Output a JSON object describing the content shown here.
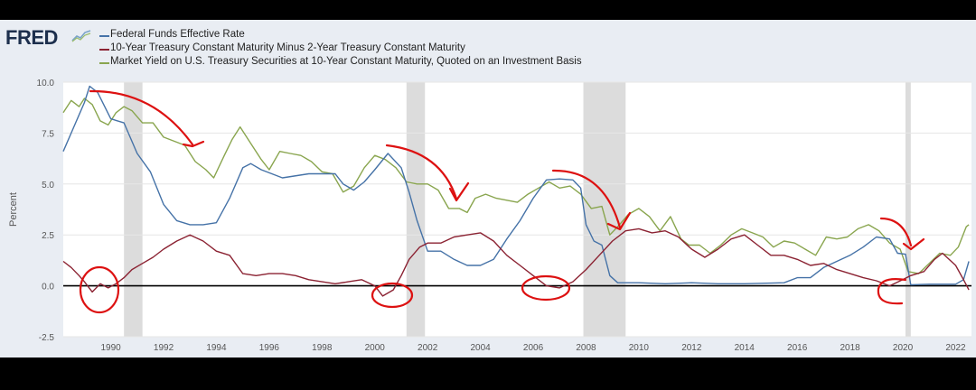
{
  "logo": {
    "text": "FRED"
  },
  "colors": {
    "fedfunds": "#4572a7",
    "spread": "#8b2232",
    "yield10": "#89a54e",
    "recession": "#dcdcdc",
    "annotation": "#dd1111"
  },
  "chart_data": {
    "type": "line",
    "ylabel": "Percent",
    "xlim": [
      1988.2,
      2022.6
    ],
    "ylim": [
      -2.5,
      10
    ],
    "yticks": [
      -2.5,
      0.0,
      2.5,
      5.0,
      7.5,
      10.0
    ],
    "ytick_labels": [
      "-2.5",
      "0.0",
      "2.5",
      "5.0",
      "7.5",
      "10.0"
    ],
    "xticks": [
      1990,
      1992,
      1994,
      1996,
      1998,
      2000,
      2002,
      2004,
      2006,
      2008,
      2010,
      2012,
      2014,
      2016,
      2018,
      2020,
      2022
    ],
    "xtick_labels": [
      "1990",
      "1992",
      "1994",
      "1996",
      "1998",
      "2000",
      "2002",
      "2004",
      "2006",
      "2008",
      "2010",
      "2012",
      "2014",
      "2016",
      "2018",
      "2020",
      "2022"
    ],
    "recessions": [
      [
        1990.5,
        1991.2
      ],
      [
        2001.2,
        2001.9
      ],
      [
        2007.9,
        2009.5
      ],
      [
        2020.1,
        2020.3
      ]
    ],
    "series": [
      {
        "name": "Federal Funds Effective Rate",
        "color_key": "fedfunds",
        "x": [
          1988.2,
          1988.6,
          1989.0,
          1989.2,
          1989.5,
          1990.0,
          1990.5,
          1991.0,
          1991.5,
          1992.0,
          1992.5,
          1993.0,
          1993.5,
          1994.0,
          1994.5,
          1995.0,
          1995.3,
          1995.7,
          1996.5,
          1997.5,
          1998.5,
          1998.8,
          1999.2,
          1999.6,
          2000.0,
          2000.5,
          2001.0,
          2001.3,
          2001.6,
          2002.0,
          2002.5,
          2003.0,
          2003.5,
          2004.0,
          2004.5,
          2005.0,
          2005.5,
          2006.0,
          2006.5,
          2007.0,
          2007.5,
          2007.8,
          2008.0,
          2008.3,
          2008.6,
          2008.9,
          2009.2,
          2010.0,
          2011.0,
          2012.0,
          2013.0,
          2014.0,
          2015.5,
          2016.0,
          2016.5,
          2017.0,
          2017.5,
          2018.0,
          2018.5,
          2019.0,
          2019.5,
          2019.8,
          2020.1,
          2020.3,
          2021.0,
          2022.0,
          2022.3,
          2022.5
        ],
        "y": [
          6.6,
          7.8,
          9.0,
          9.8,
          9.5,
          8.2,
          8.0,
          6.5,
          5.6,
          4.0,
          3.2,
          3.0,
          3.0,
          3.1,
          4.3,
          5.8,
          6.0,
          5.7,
          5.3,
          5.5,
          5.5,
          5.0,
          4.7,
          5.1,
          5.7,
          6.5,
          5.8,
          4.6,
          3.2,
          1.7,
          1.7,
          1.3,
          1.0,
          1.0,
          1.3,
          2.3,
          3.2,
          4.3,
          5.2,
          5.25,
          5.2,
          4.8,
          3.0,
          2.2,
          2.0,
          0.5,
          0.15,
          0.15,
          0.1,
          0.15,
          0.1,
          0.1,
          0.15,
          0.4,
          0.4,
          0.9,
          1.2,
          1.5,
          1.9,
          2.4,
          2.3,
          1.6,
          1.55,
          0.05,
          0.08,
          0.08,
          0.3,
          1.2
        ]
      },
      {
        "name": "10-Year Treasury Constant Maturity Minus 2-Year Treasury Constant Maturity",
        "color_key": "spread",
        "x": [
          1988.2,
          1988.5,
          1988.8,
          1989.0,
          1989.3,
          1989.6,
          1989.9,
          1990.2,
          1990.5,
          1990.8,
          1991.2,
          1991.6,
          1992.0,
          1992.5,
          1993.0,
          1993.5,
          1994.0,
          1994.5,
          1995.0,
          1995.5,
          1996.0,
          1996.5,
          1997.0,
          1997.5,
          1998.0,
          1998.5,
          1999.0,
          1999.5,
          2000.0,
          2000.3,
          2000.7,
          2001.0,
          2001.3,
          2001.7,
          2002.0,
          2002.5,
          2003.0,
          2003.5,
          2004.0,
          2004.5,
          2005.0,
          2005.5,
          2006.0,
          2006.5,
          2007.0,
          2007.5,
          2008.0,
          2008.5,
          2009.0,
          2009.5,
          2010.0,
          2010.5,
          2011.0,
          2011.5,
          2012.0,
          2012.5,
          2013.0,
          2013.5,
          2014.0,
          2014.5,
          2015.0,
          2015.5,
          2016.0,
          2016.5,
          2017.0,
          2017.5,
          2018.0,
          2018.5,
          2019.0,
          2019.5,
          2020.0,
          2020.3,
          2020.8,
          2021.2,
          2021.5,
          2022.0,
          2022.3,
          2022.5
        ],
        "y": [
          1.2,
          0.9,
          0.5,
          0.2,
          -0.3,
          0.1,
          -0.1,
          0.1,
          0.4,
          0.8,
          1.1,
          1.4,
          1.8,
          2.2,
          2.5,
          2.2,
          1.7,
          1.5,
          0.6,
          0.5,
          0.6,
          0.6,
          0.5,
          0.3,
          0.2,
          0.1,
          0.2,
          0.3,
          0.0,
          -0.5,
          -0.2,
          0.5,
          1.3,
          1.9,
          2.1,
          2.1,
          2.4,
          2.5,
          2.6,
          2.2,
          1.5,
          1.0,
          0.5,
          0.0,
          -0.1,
          0.2,
          0.8,
          1.5,
          2.2,
          2.7,
          2.8,
          2.6,
          2.7,
          2.4,
          1.8,
          1.4,
          1.8,
          2.3,
          2.5,
          2.0,
          1.5,
          1.5,
          1.3,
          1.0,
          1.1,
          0.8,
          0.6,
          0.4,
          0.25,
          0.0,
          0.3,
          0.5,
          0.7,
          1.3,
          1.6,
          1.0,
          0.3,
          -0.2
        ]
      },
      {
        "name": "Market Yield on U.S. Treasury Securities at 10-Year Constant Maturity, Quoted on an Investment Basis",
        "color_key": "yield10",
        "x": [
          1988.2,
          1988.5,
          1988.8,
          1989.0,
          1989.3,
          1989.6,
          1989.9,
          1990.2,
          1990.5,
          1990.8,
          1991.2,
          1991.6,
          1992.0,
          1992.4,
          1992.8,
          1993.2,
          1993.6,
          1993.9,
          1994.3,
          1994.6,
          1994.9,
          1995.3,
          1995.7,
          1996.0,
          1996.4,
          1996.8,
          1997.2,
          1997.6,
          1998.0,
          1998.4,
          1998.8,
          1999.2,
          1999.6,
          2000.0,
          2000.4,
          2000.8,
          2001.2,
          2001.6,
          2002.0,
          2002.4,
          2002.8,
          2003.2,
          2003.5,
          2003.8,
          2004.2,
          2004.6,
          2005.0,
          2005.4,
          2005.8,
          2006.2,
          2006.6,
          2007.0,
          2007.4,
          2007.8,
          2008.2,
          2008.6,
          2008.9,
          2009.2,
          2009.6,
          2010.0,
          2010.4,
          2010.8,
          2011.2,
          2011.6,
          2011.9,
          2012.3,
          2012.7,
          2013.1,
          2013.5,
          2013.9,
          2014.3,
          2014.7,
          2015.1,
          2015.5,
          2015.9,
          2016.3,
          2016.7,
          2017.1,
          2017.5,
          2017.9,
          2018.3,
          2018.7,
          2019.1,
          2019.5,
          2019.9,
          2020.2,
          2020.6,
          2021.0,
          2021.4,
          2021.8,
          2022.1,
          2022.4,
          2022.5
        ],
        "y": [
          8.5,
          9.1,
          8.8,
          9.2,
          8.9,
          8.1,
          7.9,
          8.5,
          8.8,
          8.6,
          8.0,
          8.0,
          7.3,
          7.1,
          6.9,
          6.1,
          5.7,
          5.3,
          6.4,
          7.2,
          7.8,
          7.0,
          6.2,
          5.7,
          6.6,
          6.5,
          6.4,
          6.1,
          5.6,
          5.5,
          4.6,
          4.9,
          5.8,
          6.4,
          6.2,
          5.8,
          5.1,
          5.0,
          5.0,
          4.7,
          3.8,
          3.8,
          3.6,
          4.3,
          4.5,
          4.3,
          4.2,
          4.1,
          4.5,
          4.8,
          5.1,
          4.8,
          4.9,
          4.5,
          3.8,
          3.9,
          2.5,
          2.9,
          3.5,
          3.8,
          3.4,
          2.7,
          3.4,
          2.3,
          2.0,
          2.0,
          1.6,
          2.0,
          2.5,
          2.8,
          2.6,
          2.4,
          1.9,
          2.2,
          2.1,
          1.8,
          1.5,
          2.4,
          2.3,
          2.4,
          2.8,
          3.0,
          2.7,
          2.1,
          1.8,
          0.7,
          0.6,
          1.1,
          1.6,
          1.5,
          1.9,
          2.9,
          3.0
        ]
      }
    ]
  }
}
